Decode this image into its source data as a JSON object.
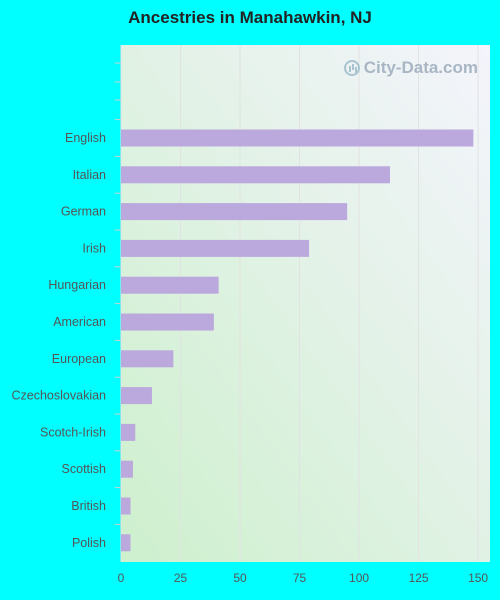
{
  "page": {
    "title": "Ancestries in Manahawkin, NJ",
    "watermark": "City-Data.com"
  },
  "colors": {
    "background": "#00ffff",
    "bar": "#bba8dc",
    "gradient_top_right": "#f4f4fc",
    "gradient_bottom_left": "#cdf0cd",
    "gridline": "#e2e2e2",
    "tick_label": "#555555"
  },
  "chart_data": {
    "type": "bar",
    "orientation": "horizontal",
    "title": "Ancestries in Manahawkin, NJ",
    "categories": [
      "English",
      "Italian",
      "German",
      "Irish",
      "Hungarian",
      "American",
      "European",
      "Czechoslovakian",
      "Scotch-Irish",
      "Scottish",
      "British",
      "Polish"
    ],
    "values": [
      148,
      113,
      95,
      79,
      41,
      39,
      22,
      13,
      6,
      5,
      4,
      4
    ],
    "xlim": [
      0,
      155
    ],
    "xticks": [
      0,
      25,
      50,
      75,
      100,
      125,
      150
    ],
    "grid": true
  }
}
